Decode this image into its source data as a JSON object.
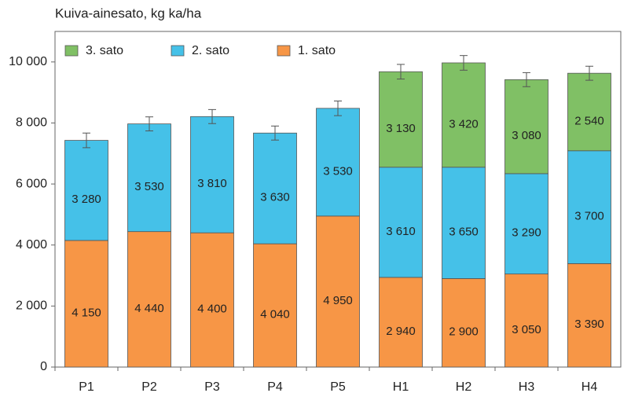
{
  "chart_data": {
    "type": "stacked-bar",
    "title": "Kuiva-ainesato, kg ka/ha",
    "categories": [
      "P1",
      "P2",
      "P3",
      "P4",
      "P5",
      "H1",
      "H2",
      "H3",
      "H4"
    ],
    "series": [
      {
        "name": "1. sato",
        "color": "#f79646",
        "values": [
          4150,
          4440,
          4400,
          4040,
          4950,
          2940,
          2900,
          3050,
          3390
        ],
        "value_labels": [
          "4 150",
          "4 440",
          "4 400",
          "4 040",
          "4 950",
          "2 940",
          "2 900",
          "3 050",
          "3 390"
        ]
      },
      {
        "name": "2. sato",
        "color": "#45c1e8",
        "values": [
          3280,
          3530,
          3810,
          3630,
          3530,
          3610,
          3650,
          3290,
          3700
        ],
        "value_labels": [
          "3 280",
          "3 530",
          "3 810",
          "3 630",
          "3 530",
          "3 610",
          "3 650",
          "3 290",
          "3 700"
        ]
      },
      {
        "name": "3. sato",
        "color": "#80c065",
        "values": [
          null,
          null,
          null,
          null,
          null,
          3130,
          3420,
          3080,
          2540
        ],
        "value_labels": [
          null,
          null,
          null,
          null,
          null,
          "3 130",
          "3 420",
          "3 080",
          "2 540"
        ]
      }
    ],
    "errors": [
      240,
      230,
      230,
      230,
      240,
      240,
      240,
      230,
      230
    ],
    "ylim": [
      0,
      11000
    ],
    "yticks": [
      0,
      {
        "value": 2000,
        "label": "2 000"
      },
      {
        "value": 4000,
        "label": "4 000"
      },
      {
        "value": 6000,
        "label": "6 000"
      },
      {
        "value": 8000,
        "label": "8 000"
      },
      {
        "value": 10000,
        "label": "10 000"
      }
    ],
    "legend": "top-left"
  }
}
